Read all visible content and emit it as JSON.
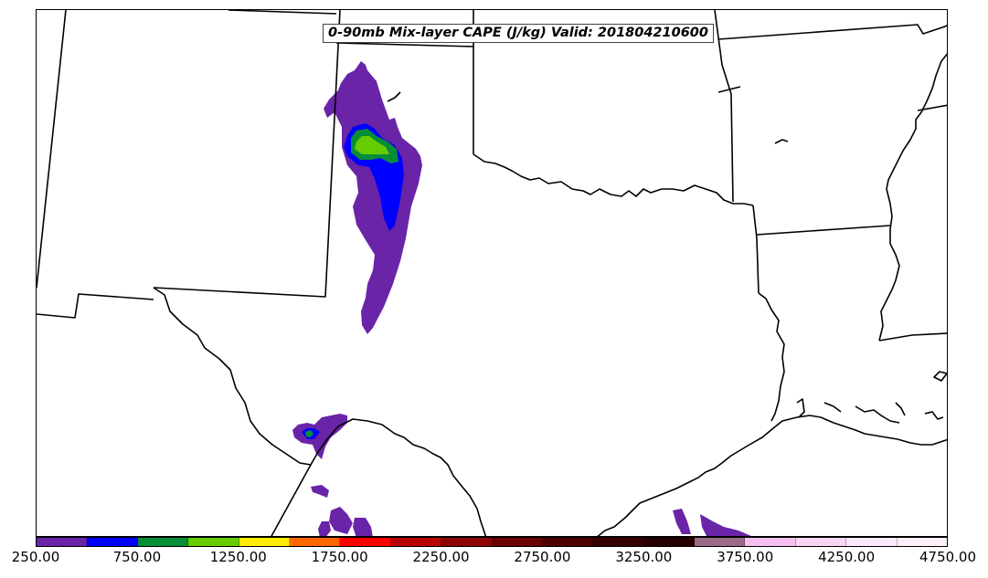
{
  "title": "0-90mb Mix-layer CAPE (J/kg) Valid: 201804210600",
  "colorbar": {
    "colors": [
      "#6a24a8",
      "#0000ff",
      "#098e38",
      "#66cc00",
      "#ffee00",
      "#ff6600",
      "#ff0000",
      "#b80606",
      "#8c0404",
      "#6a0202",
      "#4c0000",
      "#360000",
      "#260000",
      "#9b6a84",
      "#f5c0f0",
      "#f8d6f4",
      "#fbe8f8",
      "#fdf0fb"
    ],
    "ticks": [
      "250.00",
      "750.00",
      "1250.00",
      "1750.00",
      "2250.00",
      "2750.00",
      "3250.00",
      "3750.00",
      "4250.00",
      "4750.00"
    ]
  },
  "legend_colors": {
    "cape_250": "#6a24a8",
    "cape_500": "#0000ff",
    "cape_750": "#098e38",
    "cape_1000": "#66cc00"
  }
}
